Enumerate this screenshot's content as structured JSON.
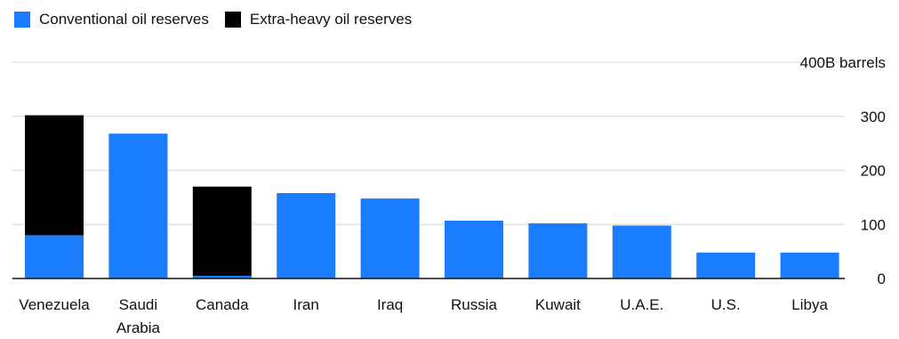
{
  "legend": [
    {
      "label": "Conventional oil reserves",
      "color": "#1a7cff"
    },
    {
      "label": "Extra-heavy oil reserves",
      "color": "#000000"
    }
  ],
  "chart_data": {
    "type": "bar",
    "stacked": true,
    "categories": [
      "Venezuela",
      "Saudi Arabia",
      "Canada",
      "Iran",
      "Iraq",
      "Russia",
      "Kuwait",
      "U.A.E.",
      "U.S.",
      "Libya"
    ],
    "category_lines": [
      [
        "Venezuela"
      ],
      [
        "Saudi",
        "Arabia"
      ],
      [
        "Canada"
      ],
      [
        "Iran"
      ],
      [
        "Iraq"
      ],
      [
        "Russia"
      ],
      [
        "Kuwait"
      ],
      [
        "U.A.E."
      ],
      [
        "U.S."
      ],
      [
        "Libya"
      ]
    ],
    "series": [
      {
        "name": "Conventional oil reserves",
        "color": "#1a7cff",
        "values": [
          80,
          268,
          5,
          158,
          148,
          107,
          102,
          98,
          48,
          48
        ]
      },
      {
        "name": "Extra-heavy oil reserves",
        "color": "#000000",
        "values": [
          222,
          0,
          165,
          0,
          0,
          0,
          0,
          0,
          0,
          0
        ]
      }
    ],
    "yticks": [
      0,
      100,
      200,
      300,
      400
    ],
    "ytick_labels": [
      "0",
      "100",
      "200",
      "300",
      "400B barrels"
    ],
    "ylim": [
      0,
      400
    ],
    "grid": true,
    "legend_position": "top-left"
  }
}
